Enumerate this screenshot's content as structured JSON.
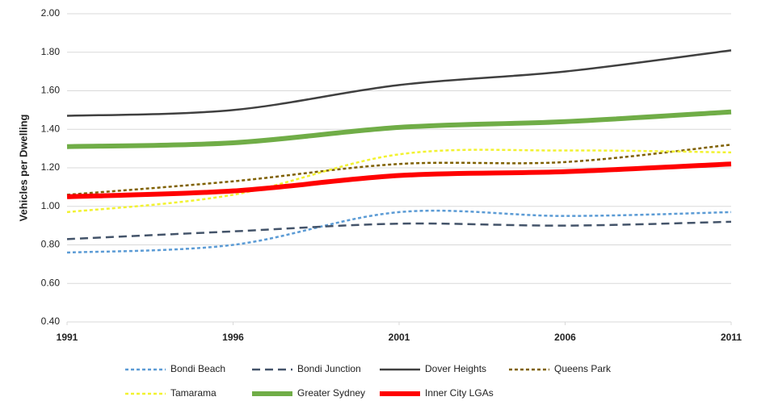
{
  "chart_data": {
    "type": "line",
    "y_label": "Vehicles per Dwelling",
    "x": [
      1991,
      1996,
      2001,
      2006,
      2011
    ],
    "xlim": [
      1991,
      2011
    ],
    "xticks": [
      1991,
      1996,
      2001,
      2006,
      2011
    ],
    "ylim": [
      0.4,
      2.0
    ],
    "yticks": [
      {
        "value": 0.4,
        "label": "0.40"
      },
      {
        "value": 0.6,
        "label": "0.60"
      },
      {
        "value": 0.8,
        "label": "0.80"
      },
      {
        "value": 1.0,
        "label": "1.00"
      },
      {
        "value": 1.2,
        "label": "1.20"
      },
      {
        "value": 1.4,
        "label": "1.40"
      },
      {
        "value": 1.6,
        "label": "1.60"
      },
      {
        "value": 1.8,
        "label": "1.80"
      },
      {
        "value": 2.0,
        "label": "2.00"
      }
    ],
    "grid": true,
    "legend": "bottom",
    "series": [
      {
        "name": "Bondi Beach",
        "color": "#5b9bd5",
        "dash": "short-dash",
        "weight": "normal",
        "values": [
          0.76,
          0.8,
          0.97,
          0.95,
          0.97
        ]
      },
      {
        "name": "Bondi Junction",
        "color": "#44546a",
        "dash": "long-dash",
        "weight": "normal",
        "values": [
          0.83,
          0.87,
          0.91,
          0.9,
          0.92
        ]
      },
      {
        "name": "Dover Heights",
        "color": "#404040",
        "dash": "solid",
        "weight": "normal",
        "values": [
          1.47,
          1.5,
          1.63,
          1.7,
          1.81
        ]
      },
      {
        "name": "Queens Park",
        "color": "#7f6000",
        "dash": "short-dash",
        "weight": "normal",
        "values": [
          1.06,
          1.13,
          1.22,
          1.23,
          1.32
        ]
      },
      {
        "name": "Tamarama",
        "color": "#f2f230",
        "dash": "short-dash",
        "weight": "normal",
        "values": [
          0.97,
          1.06,
          1.27,
          1.29,
          1.28
        ]
      },
      {
        "name": "Greater Sydney",
        "color": "#70ad47",
        "dash": "solid",
        "weight": "thick",
        "values": [
          1.31,
          1.33,
          1.41,
          1.44,
          1.49
        ]
      },
      {
        "name": "Inner City LGAs",
        "color": "#ff0000",
        "dash": "solid",
        "weight": "thick",
        "values": [
          1.05,
          1.08,
          1.16,
          1.18,
          1.22
        ]
      }
    ]
  }
}
